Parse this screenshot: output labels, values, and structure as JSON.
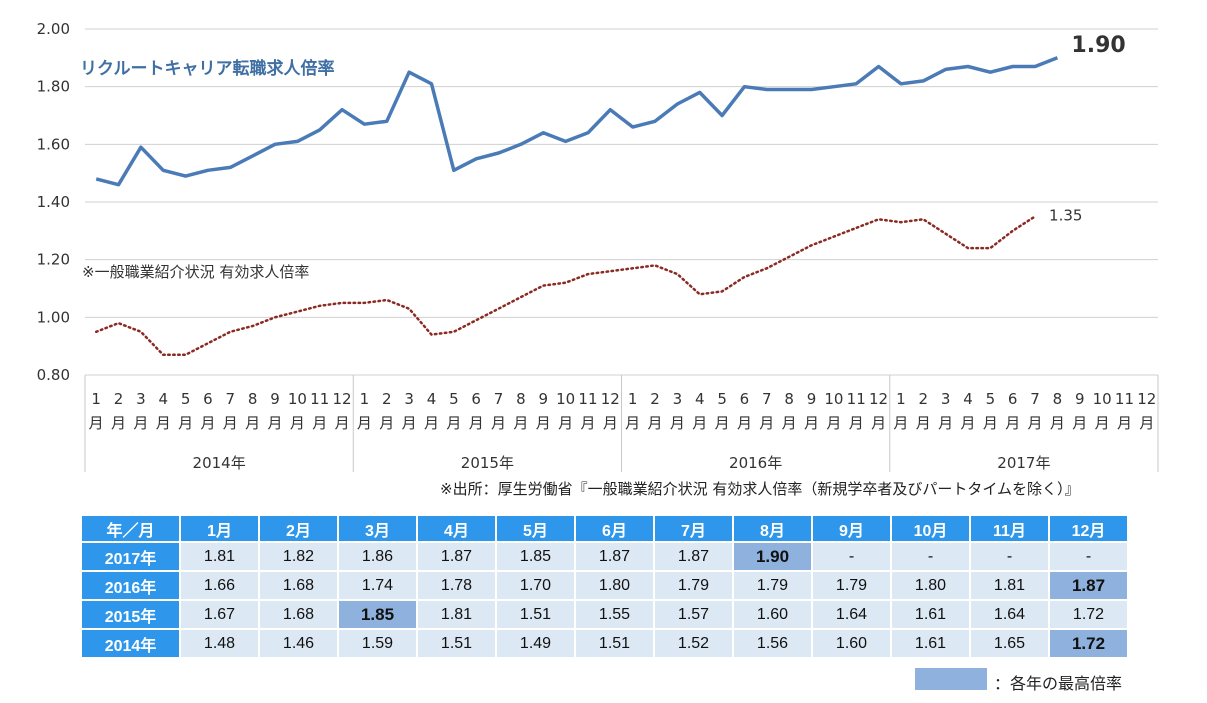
{
  "chart_data": {
    "type": "line",
    "ylim": [
      0.8,
      2.0
    ],
    "yticks": [
      "0.80",
      "1.00",
      "1.20",
      "1.40",
      "1.60",
      "1.80",
      "2.00"
    ],
    "month_numbers": [
      "1",
      "2",
      "3",
      "4",
      "5",
      "6",
      "7",
      "8",
      "9",
      "10",
      "11",
      "12"
    ],
    "month_suffix": "月",
    "years": [
      "2014年",
      "2015年",
      "2016年",
      "2017年"
    ],
    "series": [
      {
        "name": "リクルートキャリア転職求人倍率",
        "color": "#4a7bb7",
        "style": "solid",
        "end_label": "1.90",
        "values": [
          1.48,
          1.46,
          1.59,
          1.51,
          1.49,
          1.51,
          1.52,
          1.56,
          1.6,
          1.61,
          1.65,
          1.72,
          1.67,
          1.68,
          1.85,
          1.81,
          1.51,
          1.55,
          1.57,
          1.6,
          1.64,
          1.61,
          1.64,
          1.72,
          1.66,
          1.68,
          1.74,
          1.78,
          1.7,
          1.8,
          1.79,
          1.79,
          1.79,
          1.8,
          1.81,
          1.87,
          1.81,
          1.82,
          1.86,
          1.87,
          1.85,
          1.87,
          1.87,
          1.9
        ]
      },
      {
        "name": "※一般職業紹介状況 有効求人倍率",
        "color": "#8b2a22",
        "style": "dotted",
        "end_label": "1.35",
        "values": [
          0.95,
          0.98,
          0.95,
          0.87,
          0.87,
          0.91,
          0.95,
          0.97,
          1.0,
          1.02,
          1.04,
          1.05,
          1.05,
          1.06,
          1.03,
          0.94,
          0.95,
          0.99,
          1.03,
          1.07,
          1.11,
          1.12,
          1.15,
          1.16,
          1.17,
          1.18,
          1.15,
          1.08,
          1.09,
          1.14,
          1.17,
          1.21,
          1.25,
          1.28,
          1.31,
          1.34,
          1.33,
          1.34,
          1.29,
          1.24,
          1.24,
          1.3,
          1.35
        ]
      }
    ]
  },
  "source_note": "※出所：厚生労働省『一般職業紹介状況 有効求人倍率（新規学卒者及びパートタイムを除く）』",
  "table": {
    "corner": "年／月",
    "months": [
      "1月",
      "2月",
      "3月",
      "4月",
      "5月",
      "6月",
      "7月",
      "8月",
      "9月",
      "10月",
      "11月",
      "12月"
    ],
    "rows": [
      {
        "year": "2017年",
        "values": [
          "1.81",
          "1.82",
          "1.86",
          "1.87",
          "1.85",
          "1.87",
          "1.87",
          "1.90",
          "-",
          "-",
          "-",
          "-"
        ],
        "highlight": 7
      },
      {
        "year": "2016年",
        "values": [
          "1.66",
          "1.68",
          "1.74",
          "1.78",
          "1.70",
          "1.80",
          "1.79",
          "1.79",
          "1.79",
          "1.80",
          "1.81",
          "1.87"
        ],
        "highlight": 11
      },
      {
        "year": "2015年",
        "values": [
          "1.67",
          "1.68",
          "1.85",
          "1.81",
          "1.51",
          "1.55",
          "1.57",
          "1.60",
          "1.64",
          "1.61",
          "1.64",
          "1.72"
        ],
        "highlight": 2
      },
      {
        "year": "2014年",
        "values": [
          "1.48",
          "1.46",
          "1.59",
          "1.51",
          "1.49",
          "1.51",
          "1.52",
          "1.56",
          "1.60",
          "1.61",
          "1.65",
          "1.72"
        ],
        "highlight": 11
      }
    ]
  },
  "legend": {
    "label": "：各年の最高倍率",
    "color": "#8eb2dd"
  }
}
